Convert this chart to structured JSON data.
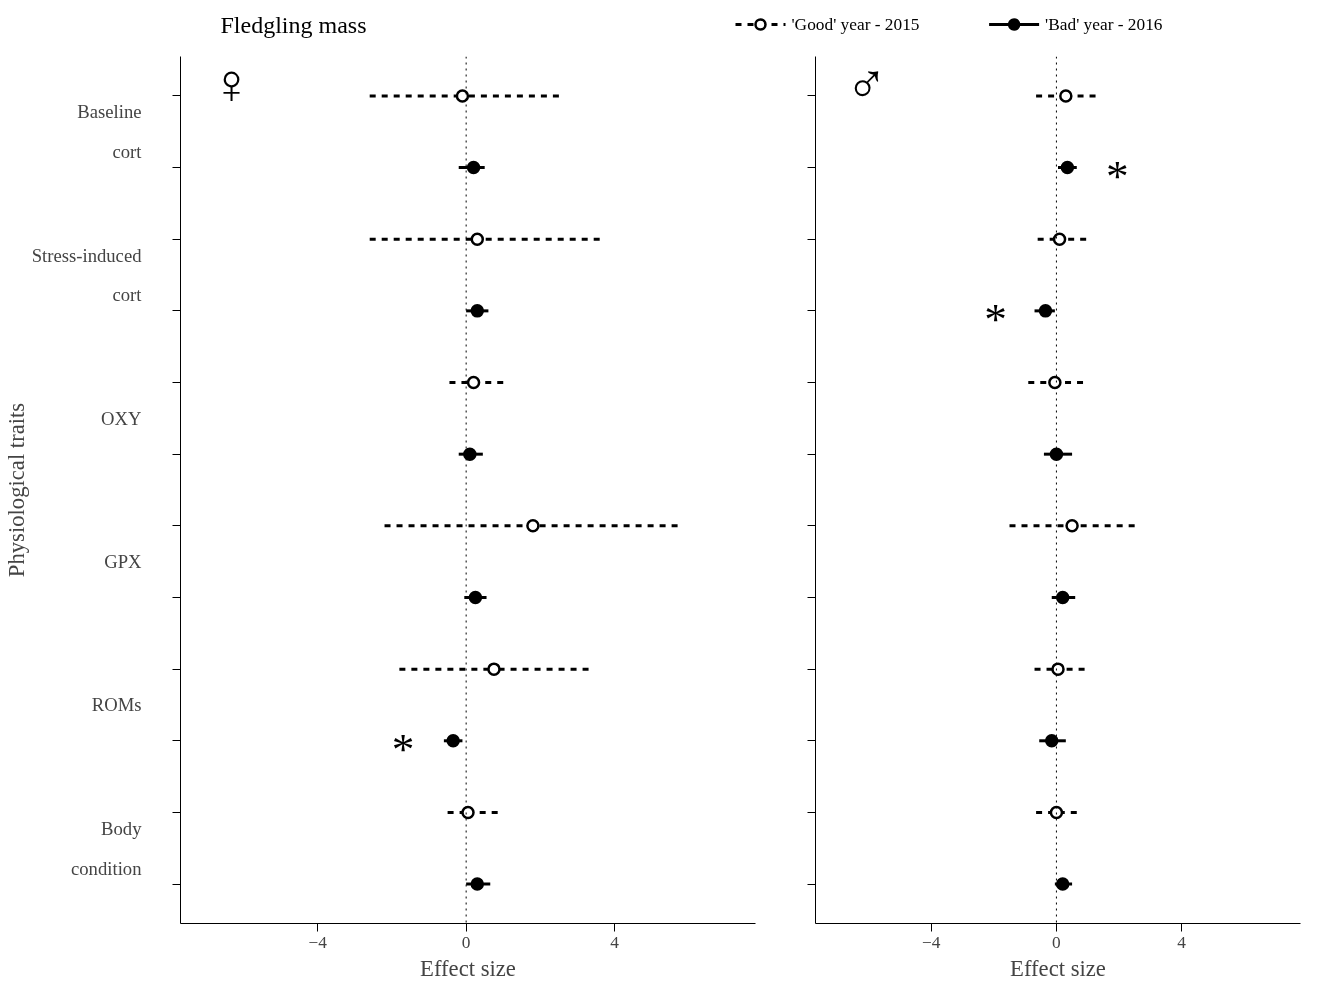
{
  "chart_data": [
    {
      "type": "scatter",
      "orientation": "horizontal",
      "title": "Fledgling mass",
      "subtitle": "♀",
      "xlabel": "Effect size",
      "ylabel": "Physiological traits",
      "xlim": [
        -7.7,
        7.8
      ],
      "xticks": [
        -4,
        0,
        4
      ],
      "categories": [
        null,
        null,
        null,
        null,
        null,
        null,
        null,
        null,
        null,
        null,
        null,
        null
      ],
      "tick_labels": "x",
      "grid": false,
      "legend": false,
      "marker": "circle",
      "series": [
        {
          "color": "#000000",
          "line_style": "dashed",
          "values": [
            -0.1,
            null,
            0.3,
            null,
            0.2,
            null,
            1.8,
            null,
            0.75,
            null,
            0.05,
            null
          ],
          "errors": [
            [
              -2.6,
              2.5
            ],
            null,
            [
              -2.6,
              3.6
            ],
            null,
            [
              -0.45,
              1.0
            ],
            null,
            [
              -2.2,
              5.7
            ],
            null,
            [
              -1.8,
              3.3
            ],
            null,
            [
              -0.5,
              0.85
            ],
            null
          ]
        },
        {
          "color": "#000000",
          "line_style": "solid",
          "values": [
            null,
            0.2,
            null,
            0.3,
            null,
            0.1,
            null,
            0.25,
            null,
            -0.35,
            null,
            0.3
          ],
          "errors": [
            null,
            [
              -0.2,
              0.5
            ],
            null,
            [
              0.0,
              0.6
            ],
            null,
            [
              -0.2,
              0.45
            ],
            null,
            [
              -0.05,
              0.55
            ],
            null,
            [
              -0.6,
              -0.1
            ],
            null,
            [
              0.0,
              0.65
            ]
          ],
          "value_labels": [
            null,
            null,
            null,
            null,
            null,
            null,
            null,
            null,
            null,
            "*",
            null,
            null
          ]
        }
      ],
      "ref_lines": [
        {
          "axis": "x",
          "value": 0,
          "line_style": "dotted"
        }
      ],
      "annotations": [
        "Baseline cort",
        "Stress-induced cort",
        "OXY",
        "GPX",
        "ROMs",
        "Body condition"
      ]
    },
    {
      "type": "scatter",
      "orientation": "horizontal",
      "subtitle": "♂",
      "xlabel": "Effect size",
      "xlim": [
        -7.7,
        7.8
      ],
      "xticks": [
        -4,
        0,
        4
      ],
      "categories": [
        null,
        null,
        null,
        null,
        null,
        null,
        null,
        null,
        null,
        null,
        null,
        null
      ],
      "tick_labels": "x",
      "grid": false,
      "legend": "top",
      "marker": "circle",
      "series": [
        {
          "name": "'Good' year - 2015",
          "color": "#000000",
          "line_style": "dashed",
          "values": [
            0.3,
            null,
            0.1,
            null,
            -0.05,
            null,
            0.5,
            null,
            0.05,
            null,
            0.0,
            null
          ],
          "errors": [
            [
              -0.65,
              1.25
            ],
            null,
            [
              -0.6,
              0.95
            ],
            null,
            [
              -0.9,
              0.85
            ],
            null,
            [
              -1.5,
              2.5
            ],
            null,
            [
              -0.7,
              0.9
            ],
            null,
            [
              -0.65,
              0.65
            ],
            null
          ]
        },
        {
          "name": "'Bad' year - 2016",
          "color": "#000000",
          "line_style": "solid",
          "values": [
            null,
            0.35,
            null,
            -0.35,
            null,
            0.0,
            null,
            0.2,
            null,
            -0.15,
            null,
            0.2
          ],
          "errors": [
            null,
            [
              0.05,
              0.65
            ],
            null,
            [
              -0.7,
              -0.05
            ],
            null,
            [
              -0.4,
              0.5
            ],
            null,
            [
              -0.15,
              0.6
            ],
            null,
            [
              -0.55,
              0.3
            ],
            null,
            [
              -0.05,
              0.5
            ]
          ],
          "value_labels": [
            null,
            "*",
            null,
            "*",
            null,
            null,
            null,
            null,
            null,
            null,
            null,
            null
          ]
        }
      ],
      "ref_lines": [
        {
          "axis": "x",
          "value": 0,
          "line_style": "dotted"
        }
      ]
    }
  ]
}
